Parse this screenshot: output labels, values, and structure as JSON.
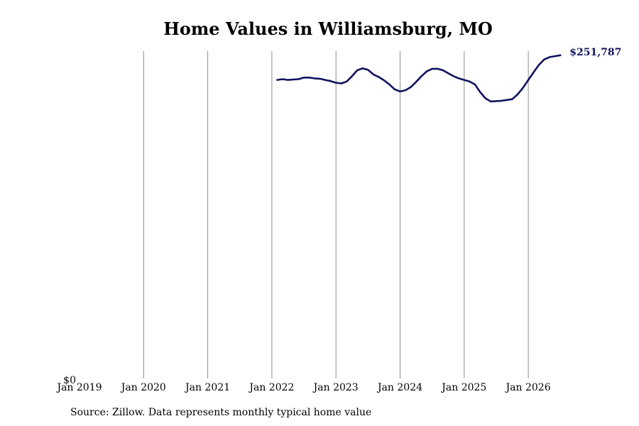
{
  "chart_data": {
    "type": "line",
    "title": "Home Values in Williamsburg, MO",
    "y_zero_label": "$0",
    "last_value_label": "$251,787",
    "xlabel": "",
    "ylabel": "",
    "x_tick_labels": [
      "Jan 2019",
      "Jan 2020",
      "Jan 2021",
      "Jan 2022",
      "Jan 2023",
      "Jan 2024",
      "Jan 2025",
      "Jan 2026"
    ],
    "ylim": [
      0,
      255000
    ],
    "grid": "vertical",
    "line_color": "#10125e",
    "series": [
      {
        "x": [
          "2022-02",
          "2022-03",
          "2022-04",
          "2022-05",
          "2022-06",
          "2022-07",
          "2022-08",
          "2022-09",
          "2022-10",
          "2022-11",
          "2022-12",
          "2023-01",
          "2023-02",
          "2023-03",
          "2023-04",
          "2023-05",
          "2023-06",
          "2023-07",
          "2023-08",
          "2023-09",
          "2023-10",
          "2023-11",
          "2023-12",
          "2024-01",
          "2024-02",
          "2024-03",
          "2024-04",
          "2024-05",
          "2024-06",
          "2024-07",
          "2024-08",
          "2024-09",
          "2024-10",
          "2024-11",
          "2024-12",
          "2025-01",
          "2025-02",
          "2025-03",
          "2025-04",
          "2025-05",
          "2025-06",
          "2025-07",
          "2025-08",
          "2025-09",
          "2025-10",
          "2025-11",
          "2025-12",
          "2026-01",
          "2026-02",
          "2026-03",
          "2026-04",
          "2026-05",
          "2026-06",
          "2026-07"
        ],
        "values": [
          232700,
          233300,
          232700,
          233000,
          233300,
          234500,
          234500,
          233900,
          233600,
          232700,
          231800,
          230500,
          230000,
          231500,
          235600,
          240200,
          241700,
          240500,
          237000,
          235000,
          232400,
          229200,
          225400,
          223800,
          224700,
          227100,
          231200,
          235600,
          239400,
          241300,
          241300,
          240200,
          237900,
          235600,
          233900,
          232700,
          231500,
          229200,
          223200,
          218400,
          216000,
          216300,
          216600,
          217200,
          217800,
          221500,
          226600,
          232700,
          238600,
          244400,
          248600,
          250400,
          251100,
          251787
        ]
      }
    ]
  },
  "footer": {
    "source": "Source: Zillow. Data represents monthly typical home value"
  }
}
